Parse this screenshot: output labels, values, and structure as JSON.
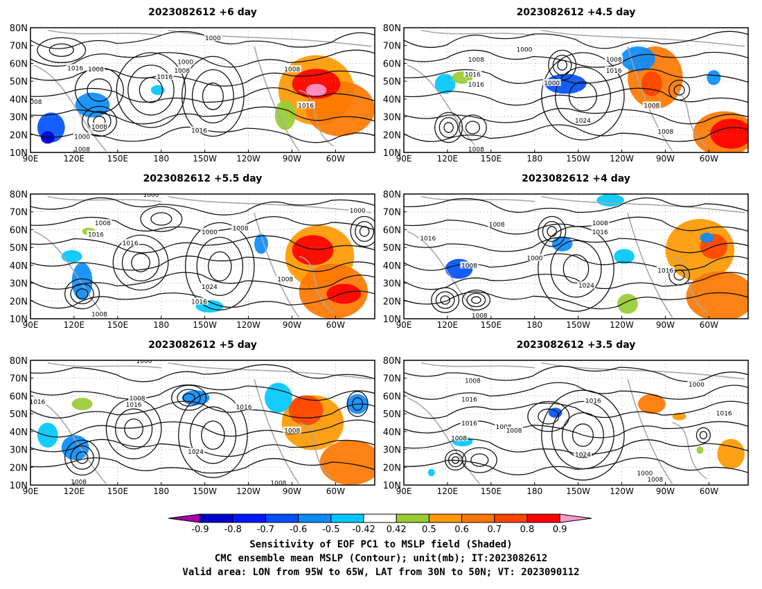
{
  "panels": [
    {
      "title": "2023082612 +6 day",
      "contour_labels": [
        "1000",
        "1016",
        "1008",
        "1000",
        "1008",
        "1016",
        "1008",
        "1008",
        "1016",
        "1016",
        "1000",
        "1008",
        "1008"
      ]
    },
    {
      "title": "2023082612 +4.5 day",
      "contour_labels": [
        "1000",
        "1008",
        "1016",
        "1016",
        "1000",
        "1008",
        "1016",
        "1024",
        "1008",
        "1008",
        "1008"
      ]
    },
    {
      "title": "2023082612 +5.5 day",
      "contour_labels": [
        "1000",
        "1008",
        "1016",
        "1016",
        "1000",
        "1008",
        "1024",
        "1016",
        "1008",
        "1000",
        "1008"
      ]
    },
    {
      "title": "2023082612 +4 day",
      "contour_labels": [
        "1008",
        "1016",
        "1008",
        "1016",
        "1000",
        "1008",
        "1024",
        "1016",
        "1008"
      ]
    },
    {
      "title": "2023082612 +5 day",
      "contour_labels": [
        "1000",
        "1016",
        "1008",
        "1016",
        "1016",
        "1024",
        "1008",
        "1008",
        "1008"
      ]
    },
    {
      "title": "2023082612 +3.5 day",
      "contour_labels": [
        "1008",
        "1016",
        "1000",
        "1008",
        "1016",
        "1008",
        "1016",
        "1024",
        "1016",
        "1000",
        "1008",
        "1008"
      ]
    }
  ],
  "axes": {
    "lon_ticks": [
      "90E",
      "120E",
      "150E",
      "180",
      "150W",
      "120W",
      "90W",
      "60W"
    ],
    "lat_ticks": [
      "80N",
      "70N",
      "60N",
      "50N",
      "40N",
      "30N",
      "20N",
      "10N"
    ]
  },
  "colorbar": {
    "labels": [
      "-0.9",
      "-0.8",
      "-0.7",
      "-0.6",
      "-0.5",
      "-0.42",
      "0.42",
      "0.5",
      "0.6",
      "0.7",
      "0.8",
      "0.9"
    ],
    "colors": [
      "#aa00aa",
      "#0000cc",
      "#0018ff",
      "#0050ff",
      "#0a8cff",
      "#00c8ff",
      "#ffffff",
      "#99cc33",
      "#ff9900",
      "#ff7700",
      "#ff4400",
      "#ff0000",
      "#ff99cc"
    ]
  },
  "footer": {
    "line1": "Sensitivity of EOF PC1 to MSLP field (Shaded)",
    "line2": "CMC ensemble mean MSLP (Contour); unit(mb); IT:2023082612",
    "line3": "Valid area: LON from 95W to 65W, LAT from 30N to 50N; VT: 2023090112"
  }
}
